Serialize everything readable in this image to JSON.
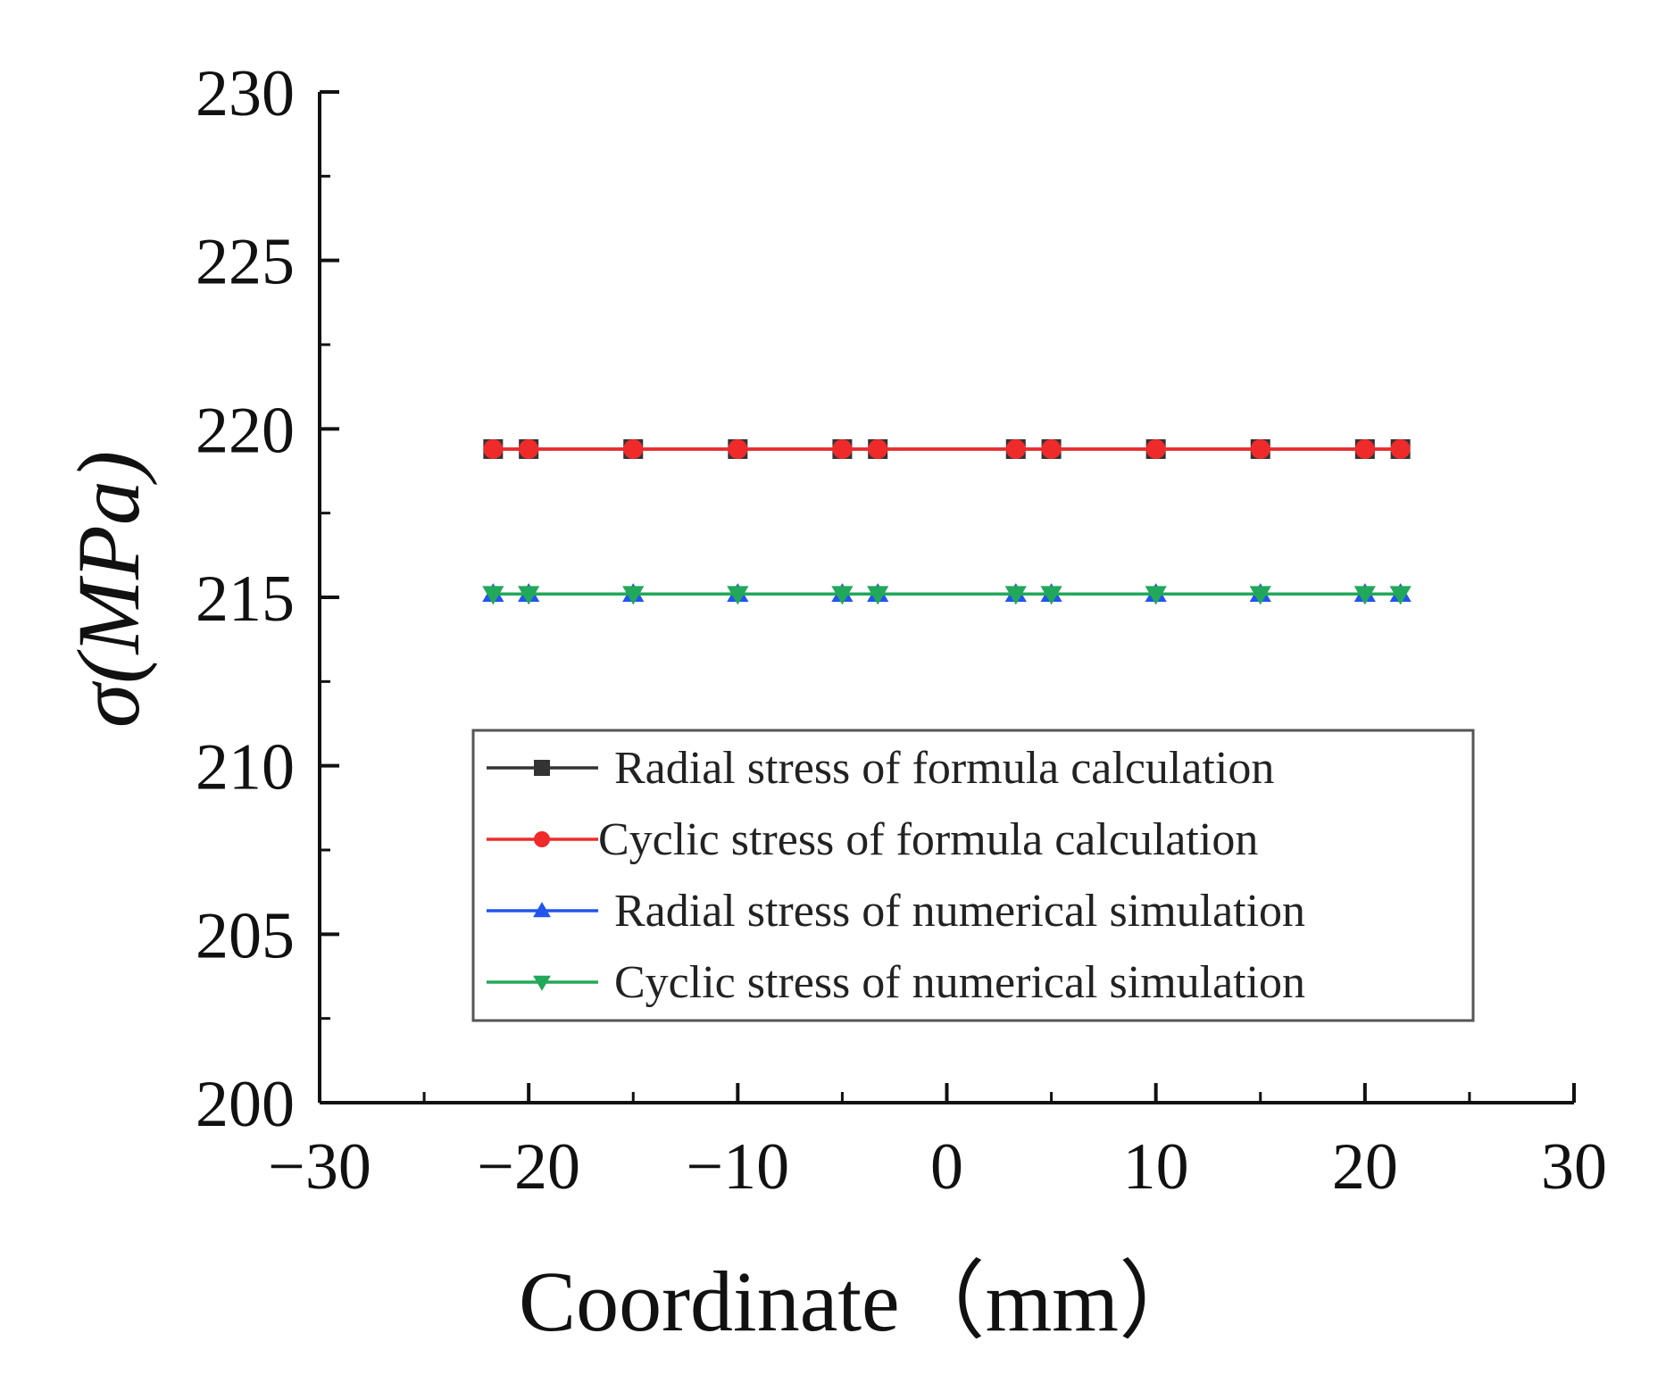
{
  "chart_data": {
    "type": "line",
    "title": "",
    "xlabel": "Coordinate（mm）",
    "ylabel": "σ(MPa)",
    "xlim": [
      -30,
      30
    ],
    "ylim": [
      200,
      230
    ],
    "x_ticks": [
      -30,
      -20,
      -10,
      0,
      10,
      20,
      30
    ],
    "x_tick_labels": [
      "−30",
      "−20",
      "−10",
      "0",
      "10",
      "20",
      "30"
    ],
    "y_ticks": [
      200,
      205,
      210,
      215,
      220,
      225,
      230
    ],
    "y_tick_labels": [
      "200",
      "205",
      "210",
      "215",
      "220",
      "225",
      "230"
    ],
    "grid": false,
    "legend_position": "lower-right",
    "x": [
      -21.7,
      -20,
      -15,
      -10,
      -5,
      -3.3,
      3.3,
      5,
      10,
      15,
      20,
      21.7
    ],
    "series": [
      {
        "name": "Radial stress of formula calculation",
        "color": "#333333",
        "marker": "square",
        "values": [
          219.4,
          219.4,
          219.4,
          219.4,
          219.4,
          219.4,
          219.4,
          219.4,
          219.4,
          219.4,
          219.4,
          219.4
        ]
      },
      {
        "name": "Cyclic stress of formula calculation",
        "color": "#ee2a2a",
        "marker": "circle",
        "values": [
          219.4,
          219.4,
          219.4,
          219.4,
          219.4,
          219.4,
          219.4,
          219.4,
          219.4,
          219.4,
          219.4,
          219.4
        ]
      },
      {
        "name": "Radial stress of numerical simulation",
        "color": "#2255ee",
        "marker": "triangle-up",
        "values": [
          215.1,
          215.1,
          215.1,
          215.1,
          215.1,
          215.1,
          215.1,
          215.1,
          215.1,
          215.1,
          215.1,
          215.1
        ]
      },
      {
        "name": "Cyclic stress of numerical simulation",
        "color": "#22a85a",
        "marker": "triangle-down",
        "values": [
          215.1,
          215.1,
          215.1,
          215.1,
          215.1,
          215.1,
          215.1,
          215.1,
          215.1,
          215.1,
          215.1,
          215.1
        ]
      }
    ]
  }
}
